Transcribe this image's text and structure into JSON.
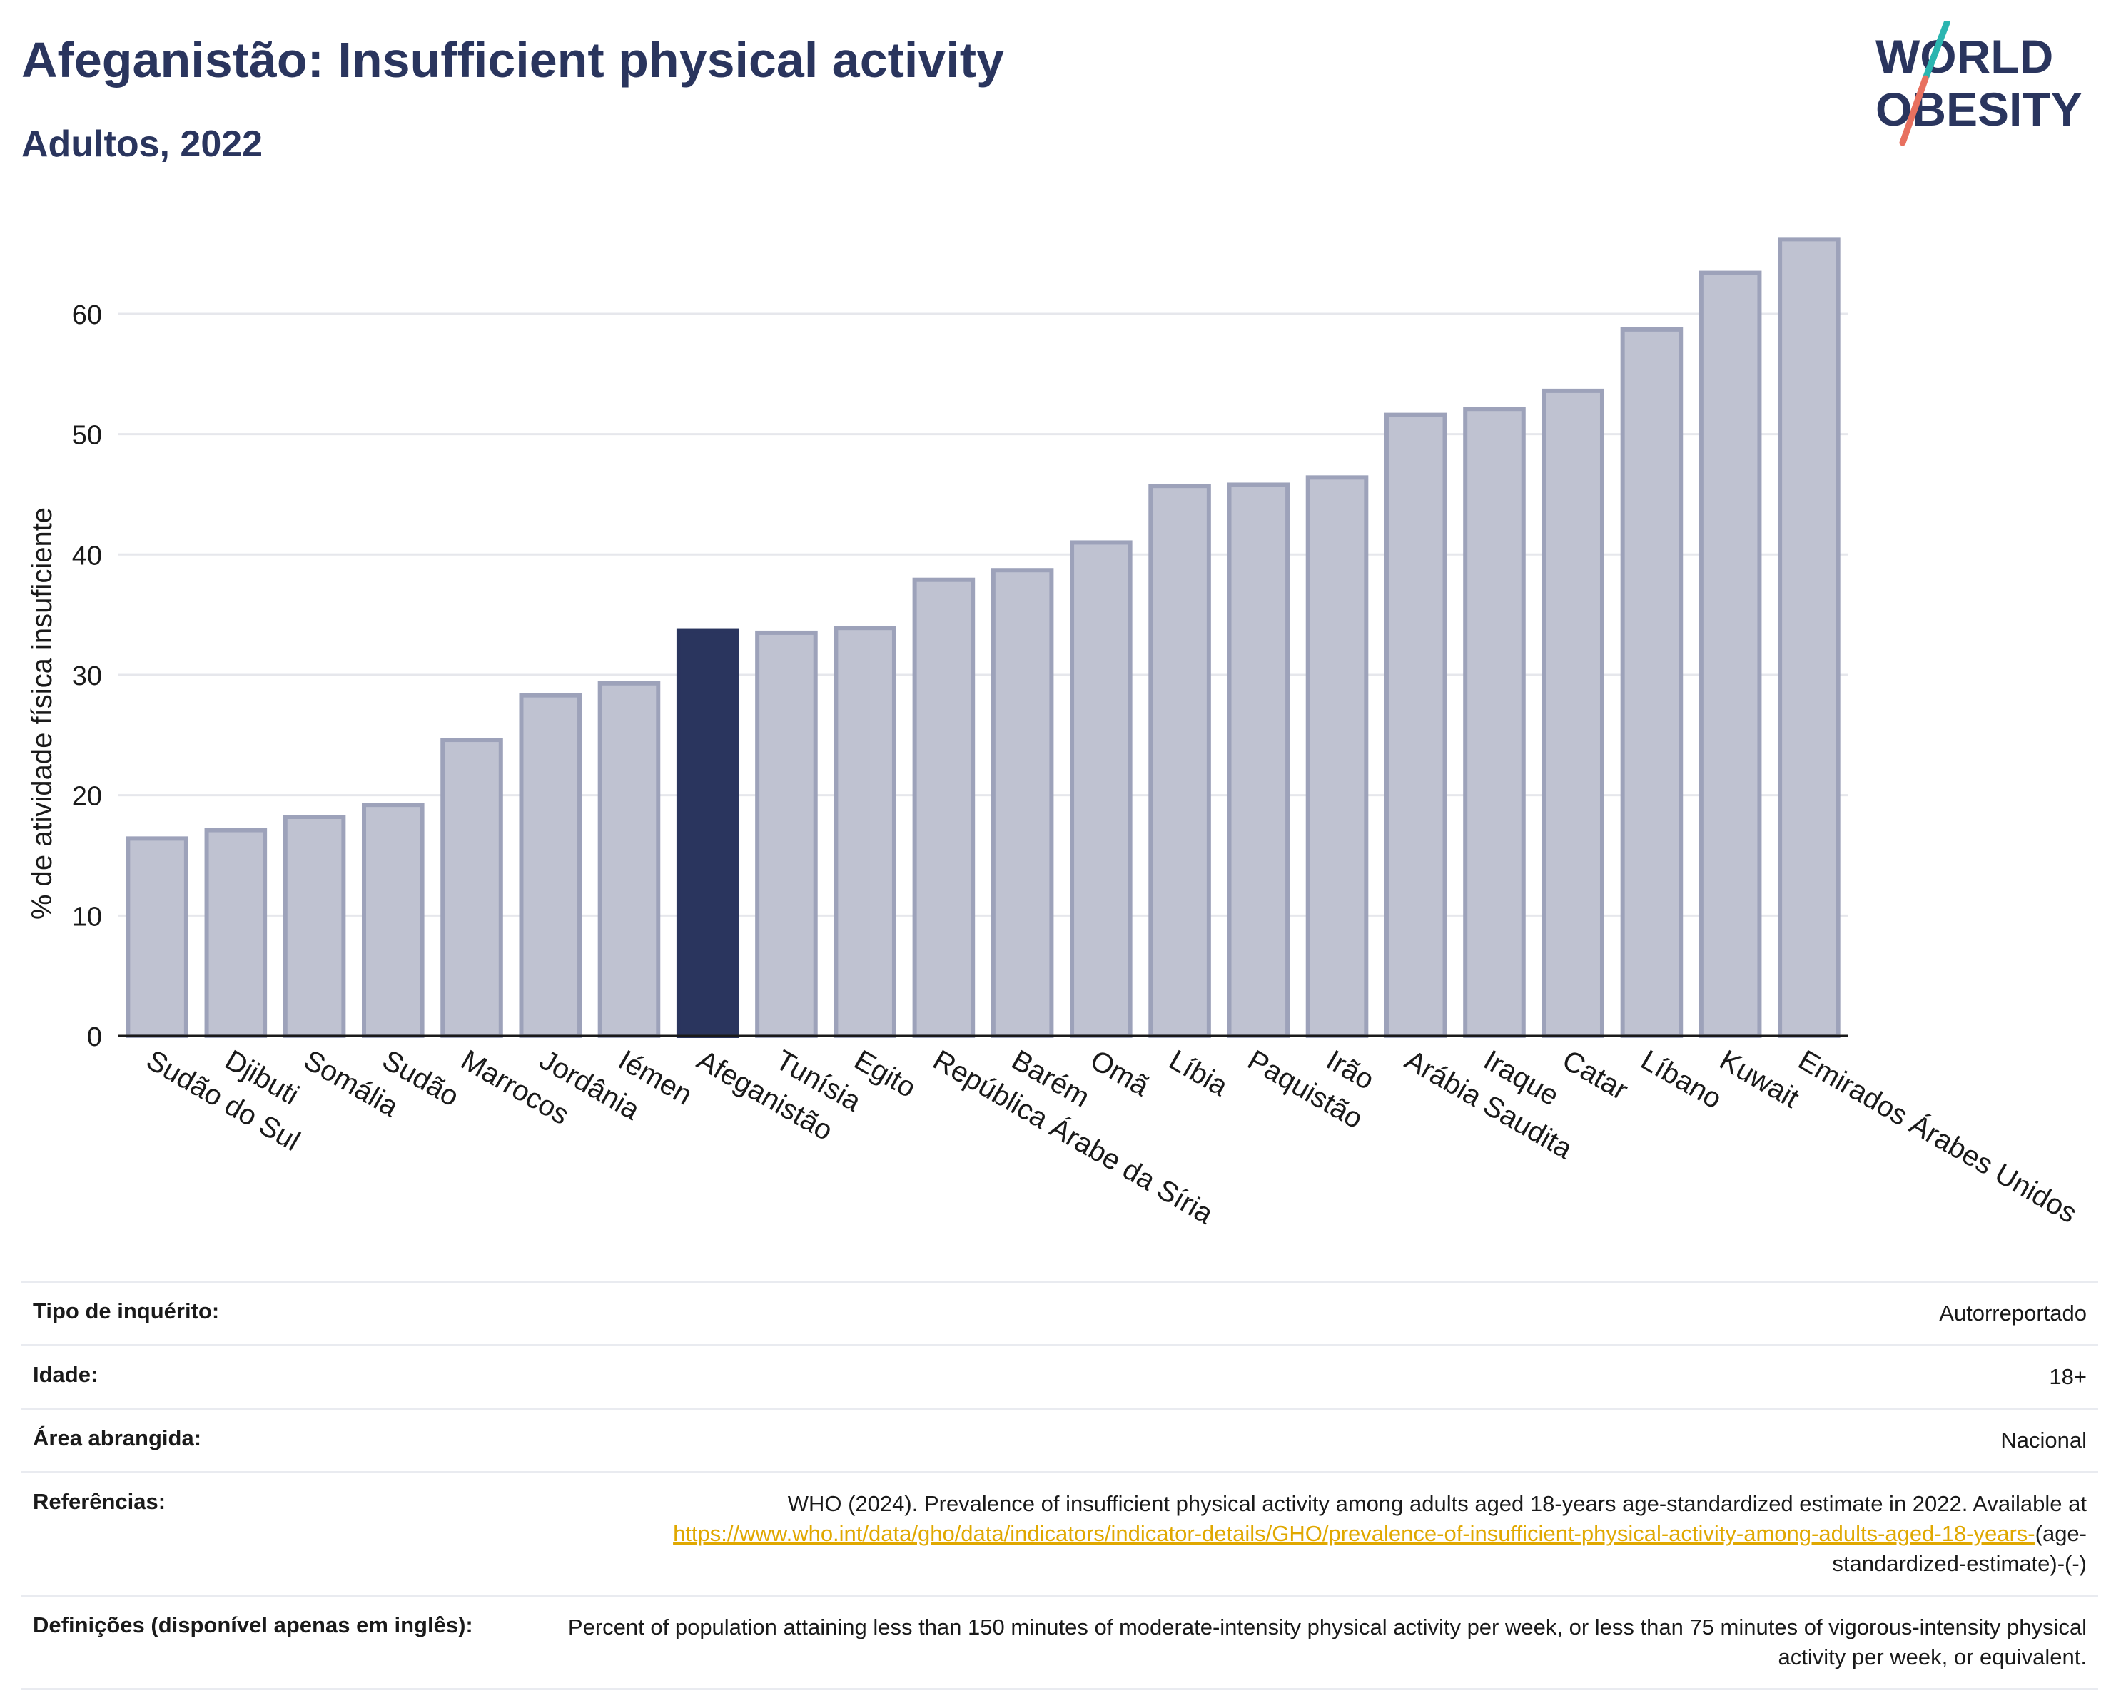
{
  "header": {
    "title": "Afeganistão: Insufficient physical activity",
    "subtitle": "Adultos, 2022"
  },
  "logo": {
    "line1": "WORLD",
    "line2": "OBESITY"
  },
  "colors": {
    "highlight": "#2a355e",
    "bar": "#bfc2d1",
    "bar_outline": "#9da2ba",
    "title": "#2a355e",
    "link": "#e0a800",
    "logo_teal": "#2bb5b0",
    "logo_coral": "#e8705f"
  },
  "chart_data": {
    "type": "bar",
    "title": "",
    "xlabel": "",
    "ylabel": "% de atividade física insuficiente",
    "ylim": [
      0,
      68
    ],
    "yticks": [
      0,
      10,
      20,
      30,
      40,
      50,
      60
    ],
    "grid": true,
    "highlight": "Afeganistão",
    "categories": [
      "Sudão do Sul",
      "Djibuti",
      "Somália",
      "Sudão",
      "Marrocos",
      "Jordânia",
      "Iémen",
      "Afeganistão",
      "Tunísia",
      "Egito",
      "República Árabe da Síria",
      "Barém",
      "Omã",
      "Líbia",
      "Paquistão",
      "Irão",
      "Arábia Saudita",
      "Iraque",
      "Catar",
      "Líbano",
      "Kuwait",
      "Emirados Árabes Unidos"
    ],
    "values": [
      16.4,
      17.1,
      18.2,
      19.2,
      24.6,
      28.3,
      29.3,
      33.7,
      33.5,
      33.9,
      37.9,
      38.7,
      41.0,
      45.7,
      45.8,
      46.4,
      51.6,
      52.1,
      53.6,
      58.7,
      63.4,
      66.2
    ]
  },
  "metadata": [
    {
      "label": "Tipo de inquérito:",
      "value": "Autorreportado"
    },
    {
      "label": "Idade:",
      "value": "18+"
    },
    {
      "label": "Área abrangida:",
      "value": "Nacional"
    },
    {
      "label": "Referências:",
      "value_prefix": "WHO (2024). Prevalence of insufficient physical activity among adults aged 18-years age-standardized estimate in 2022. Available at",
      "link": "https://www.who.int/data/gho/data/indicators/indicator-details/GHO/prevalence-of-insufficient-physical-activity-among-adults-aged-18-years-",
      "value_suffix": "(age-standardized-estimate)-(-)"
    },
    {
      "label": "Definições (disponível apenas em inglês):",
      "value": "Percent of population attaining less than 150 minutes of moderate-intensity physical activity per week, or less than 75 minutes of vigorous-intensity physical activity per week, or equivalent."
    }
  ]
}
